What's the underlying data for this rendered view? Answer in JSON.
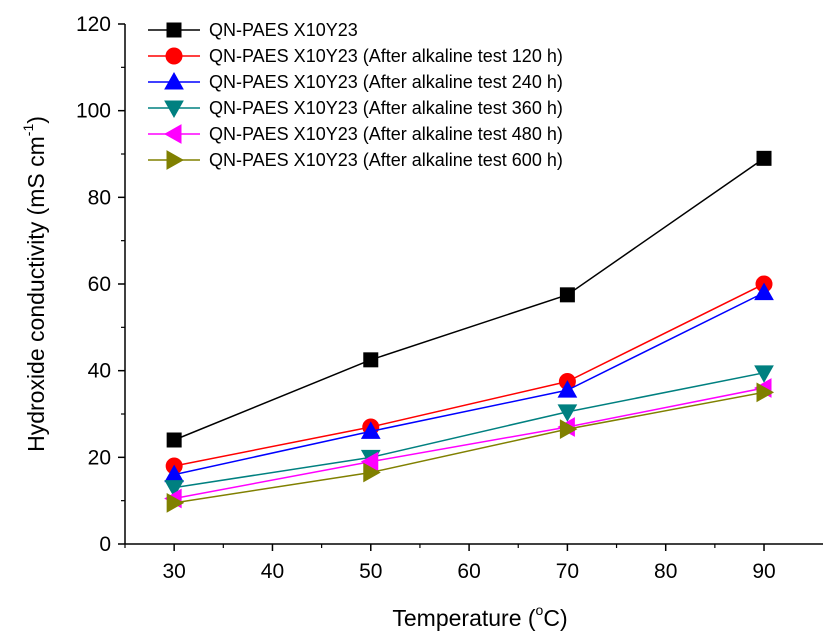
{
  "chart_data": {
    "type": "line",
    "xlabel": "Temperature (",
    "xlabel_sup": "o",
    "xlabel_tail": "C)",
    "ylabel": "Hydroxide conductivity (mS cm",
    "ylabel_sup": "-1",
    "ylabel_tail": ")",
    "x": [
      30,
      50,
      70,
      90
    ],
    "xlim": [
      25,
      96
    ],
    "ylim": [
      0,
      120
    ],
    "xticks": [
      "30",
      "40",
      "50",
      "60",
      "70",
      "80",
      "90"
    ],
    "yticks": [
      "0",
      "20",
      "40",
      "60",
      "80",
      "100",
      "120"
    ],
    "grid": false,
    "legend_position": "top-left",
    "series": [
      {
        "name": "QN-PAES X10Y23",
        "values": [
          24,
          42.5,
          57.5,
          89
        ],
        "color": "#000000",
        "marker": "square"
      },
      {
        "name": "QN-PAES X10Y23 (After alkaline test 120 h)",
        "values": [
          18,
          27,
          37.5,
          60
        ],
        "color": "#ff0000",
        "marker": "circle"
      },
      {
        "name": "QN-PAES X10Y23 (After alkaline test 240 h)",
        "values": [
          16,
          26,
          35.5,
          58
        ],
        "color": "#0000ff",
        "marker": "triangle-up"
      },
      {
        "name": "QN-PAES X10Y23 (After alkaline test 360 h)",
        "values": [
          13,
          20,
          30.5,
          39.5
        ],
        "color": "#008080",
        "marker": "triangle-down"
      },
      {
        "name": "QN-PAES X10Y23 (After alkaline test 480 h)",
        "values": [
          10.5,
          19,
          27,
          36
        ],
        "color": "#ff00ff",
        "marker": "triangle-left"
      },
      {
        "name": "QN-PAES X10Y23 (After alkaline test 600 h)",
        "values": [
          9.5,
          16.5,
          26.5,
          35
        ],
        "color": "#808000",
        "marker": "triangle-right"
      }
    ]
  }
}
